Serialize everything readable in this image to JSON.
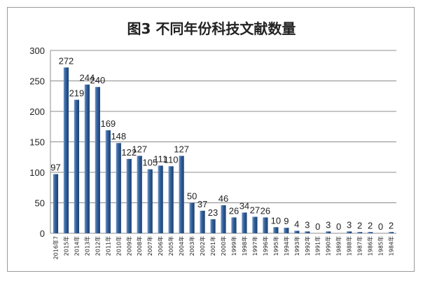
{
  "chart_data": {
    "type": "bar",
    "title": "图3 不同年份科技文献数量",
    "xlabel": "",
    "ylabel": "",
    "ylim": [
      0,
      300
    ],
    "yticks": [
      0,
      50,
      100,
      150,
      200,
      250,
      300
    ],
    "grid": true,
    "legend": "none",
    "bar_color": "#2f5f9a",
    "categories": [
      "2016年7",
      "2015年",
      "2014年",
      "2013年",
      "2012年",
      "2011年",
      "2010年",
      "2009年",
      "2008年",
      "2007年",
      "2006年",
      "2005年",
      "2004年",
      "2003年",
      "2002年",
      "2001年",
      "2000年",
      "1999年",
      "1998年",
      "1997年",
      "1996年",
      "1995年",
      "1994年",
      "1993年",
      "1992年",
      "1991年",
      "1990年",
      "1989年",
      "1988年",
      "1987年",
      "1986年",
      "1985年",
      "1984年"
    ],
    "values": [
      97,
      272,
      219,
      244,
      240,
      169,
      148,
      122,
      127,
      105,
      111,
      110,
      127,
      50,
      37,
      23,
      46,
      26,
      34,
      27,
      26,
      10,
      9,
      4,
      3,
      0,
      3,
      0,
      3,
      2,
      2,
      0,
      2
    ]
  }
}
